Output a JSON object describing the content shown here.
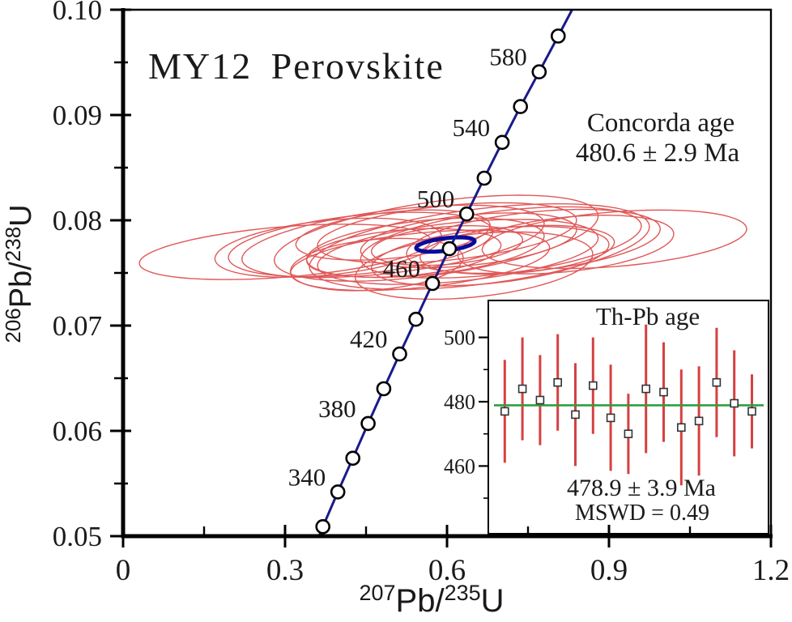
{
  "figure": {
    "title": "MY12  Perovskite",
    "annotation": {
      "line1": "Concorda age",
      "line2": "480.6 ± 2.9  Ma"
    }
  },
  "colors": {
    "concordia_line": "#1a1a8c",
    "concordia_ellipse": "#0b0b9b",
    "error_ellipse": "#e05858",
    "error_bar": "#d64040",
    "mean_line": "#2e9e41",
    "axis": "#000000",
    "text": "#1a1a1a",
    "marker_fill": "#ffffff"
  },
  "axes": {
    "x": {
      "title_parts": [
        "207",
        "Pb/",
        "235",
        "U"
      ],
      "tick_values": [
        0,
        0.3,
        0.6,
        0.9,
        1.2
      ],
      "tick_labels": [
        "0",
        "0.3",
        "0.6",
        "0.9",
        "1.2"
      ],
      "minor_values": [
        0.15,
        0.45,
        0.75,
        1.05
      ],
      "range": [
        0,
        1.2
      ]
    },
    "y": {
      "title_parts": [
        "206",
        "Pb/",
        "238",
        "U"
      ],
      "tick_values": [
        0.05,
        0.06,
        0.07,
        0.08,
        0.09,
        0.1
      ],
      "tick_labels": [
        "0.05",
        "0.06",
        "0.07",
        "0.08",
        "0.09",
        "0.10"
      ],
      "minor_values": [
        0.055,
        0.065,
        0.075,
        0.085,
        0.095
      ],
      "range": [
        0.05,
        0.1
      ]
    }
  },
  "chart_data": [
    {
      "type": "scatter",
      "subtype": "U-Pb concordia diagram with error ellipses",
      "title": "MY12 Perovskite",
      "xlabel": "207Pb/235U",
      "ylabel": "206Pb/238U",
      "xlim": [
        0,
        1.2
      ],
      "ylim": [
        0.05,
        0.1
      ],
      "annotation": "Concorda age 480.6 ± 2.9 Ma",
      "concordia_age_Ma": 480.6,
      "concordia_age_err_Ma": 2.9,
      "labeled_ages": [
        340,
        380,
        420,
        460,
        500,
        540,
        580
      ],
      "concordia_points": [
        {
          "age": 308,
          "x": 0.3544,
          "y": 0.0489
        },
        {
          "age": 320,
          "x": 0.37,
          "y": 0.0509,
          "marker": true
        },
        {
          "age": 340,
          "x": 0.3978,
          "y": 0.0542,
          "marker": true
        },
        {
          "age": 360,
          "x": 0.4255,
          "y": 0.0574,
          "marker": true
        },
        {
          "age": 380,
          "x": 0.4539,
          "y": 0.0607,
          "marker": true
        },
        {
          "age": 400,
          "x": 0.4828,
          "y": 0.064,
          "marker": true
        },
        {
          "age": 420,
          "x": 0.5123,
          "y": 0.0673,
          "marker": true
        },
        {
          "age": 440,
          "x": 0.5424,
          "y": 0.0706,
          "marker": true
        },
        {
          "age": 460,
          "x": 0.5731,
          "y": 0.074,
          "marker": true
        },
        {
          "age": 480,
          "x": 0.6044,
          "y": 0.0773,
          "marker": true
        },
        {
          "age": 500,
          "x": 0.6364,
          "y": 0.0806,
          "marker": true
        },
        {
          "age": 520,
          "x": 0.6689,
          "y": 0.084,
          "marker": true
        },
        {
          "age": 540,
          "x": 0.7022,
          "y": 0.0874,
          "marker": true
        },
        {
          "age": 560,
          "x": 0.7361,
          "y": 0.0908,
          "marker": true
        },
        {
          "age": 580,
          "x": 0.7707,
          "y": 0.0941,
          "marker": true
        },
        {
          "age": 600,
          "x": 0.806,
          "y": 0.0975,
          "marker": true
        },
        {
          "age": 618,
          "x": 0.8379,
          "y": 0.1006
        }
      ],
      "concordia_age_ellipse": {
        "cx": 0.597,
        "cy": 0.0777,
        "rx": 0.054,
        "ry": 0.0006,
        "slope": 0.006
      },
      "error_ellipses": [
        {
          "cx": 0.3,
          "cy": 0.077,
          "rx": 0.27,
          "ry": 0.0024,
          "slope": 0.004
        },
        {
          "cx": 0.38,
          "cy": 0.0774,
          "rx": 0.21,
          "ry": 0.0026,
          "slope": 0.005
        },
        {
          "cx": 0.44,
          "cy": 0.0777,
          "rx": 0.245,
          "ry": 0.0028,
          "slope": 0.005
        },
        {
          "cx": 0.5,
          "cy": 0.078,
          "rx": 0.28,
          "ry": 0.003,
          "slope": 0.006
        },
        {
          "cx": 0.52,
          "cy": 0.0769,
          "rx": 0.18,
          "ry": 0.0022,
          "slope": 0.004
        },
        {
          "cx": 0.47,
          "cy": 0.0758,
          "rx": 0.16,
          "ry": 0.0024,
          "slope": 0.004
        },
        {
          "cx": 0.56,
          "cy": 0.0774,
          "rx": 0.22,
          "ry": 0.0026,
          "slope": 0.005
        },
        {
          "cx": 0.58,
          "cy": 0.0783,
          "rx": 0.3,
          "ry": 0.0035,
          "slope": 0.007
        },
        {
          "cx": 0.6,
          "cy": 0.0776,
          "rx": 0.14,
          "ry": 0.0018,
          "slope": 0.004
        },
        {
          "cx": 0.62,
          "cy": 0.077,
          "rx": 0.26,
          "ry": 0.0028,
          "slope": 0.005
        },
        {
          "cx": 0.64,
          "cy": 0.0781,
          "rx": 0.2,
          "ry": 0.0024,
          "slope": 0.005
        },
        {
          "cx": 0.66,
          "cy": 0.0775,
          "rx": 0.315,
          "ry": 0.0036,
          "slope": 0.006
        },
        {
          "cx": 0.68,
          "cy": 0.0766,
          "rx": 0.22,
          "ry": 0.0026,
          "slope": 0.005
        },
        {
          "cx": 0.7,
          "cy": 0.0779,
          "rx": 0.26,
          "ry": 0.003,
          "slope": 0.006
        },
        {
          "cx": 0.73,
          "cy": 0.0772,
          "rx": 0.18,
          "ry": 0.0022,
          "slope": 0.004
        },
        {
          "cx": 0.76,
          "cy": 0.078,
          "rx": 0.235,
          "ry": 0.0028,
          "slope": 0.005
        },
        {
          "cx": 0.82,
          "cy": 0.0777,
          "rx": 0.2,
          "ry": 0.0026,
          "slope": 0.005
        },
        {
          "cx": 0.91,
          "cy": 0.0782,
          "rx": 0.245,
          "ry": 0.0026,
          "slope": 0.004
        },
        {
          "cx": 0.55,
          "cy": 0.0762,
          "rx": 0.24,
          "ry": 0.0026,
          "slope": 0.005
        },
        {
          "cx": 0.65,
          "cy": 0.0757,
          "rx": 0.22,
          "ry": 0.003,
          "slope": 0.005
        },
        {
          "cx": 0.6,
          "cy": 0.0788,
          "rx": 0.24,
          "ry": 0.0026,
          "slope": 0.005
        },
        {
          "cx": 0.5,
          "cy": 0.0786,
          "rx": 0.18,
          "ry": 0.0022,
          "slope": 0.005
        }
      ]
    },
    {
      "type": "scatter",
      "subtype": "weighted mean Th-Pb age plot with error bars",
      "title": "Th-Pb age",
      "mean_age_Ma": 478.9,
      "mean_err_Ma": 3.9,
      "mswd": 0.49,
      "result_label": "478.9 ± 3.9  Ma",
      "mswd_label": "MSWD = 0.49",
      "ylim": [
        440,
        511
      ],
      "yticks": {
        "values": [
          500,
          480,
          460
        ],
        "labels": [
          "500",
          "480",
          "460"
        ],
        "minor": [
          490,
          470,
          450
        ]
      },
      "analyses": [
        {
          "age": 477.0,
          "err": 16.0
        },
        {
          "age": 484.0,
          "err": 16.0
        },
        {
          "age": 480.5,
          "err": 14.0
        },
        {
          "age": 486.0,
          "err": 15.0
        },
        {
          "age": 476.0,
          "err": 16.0
        },
        {
          "age": 485.0,
          "err": 15.0
        },
        {
          "age": 475.0,
          "err": 16.5
        },
        {
          "age": 470.0,
          "err": 12.5
        },
        {
          "age": 484.0,
          "err": 20.0
        },
        {
          "age": 483.0,
          "err": 15.5
        },
        {
          "age": 472.0,
          "err": 18.0
        },
        {
          "age": 474.0,
          "err": 17.0
        },
        {
          "age": 486.0,
          "err": 17.0
        },
        {
          "age": 479.5,
          "err": 16.5
        },
        {
          "age": 477.0,
          "err": 11.5
        }
      ]
    }
  ]
}
